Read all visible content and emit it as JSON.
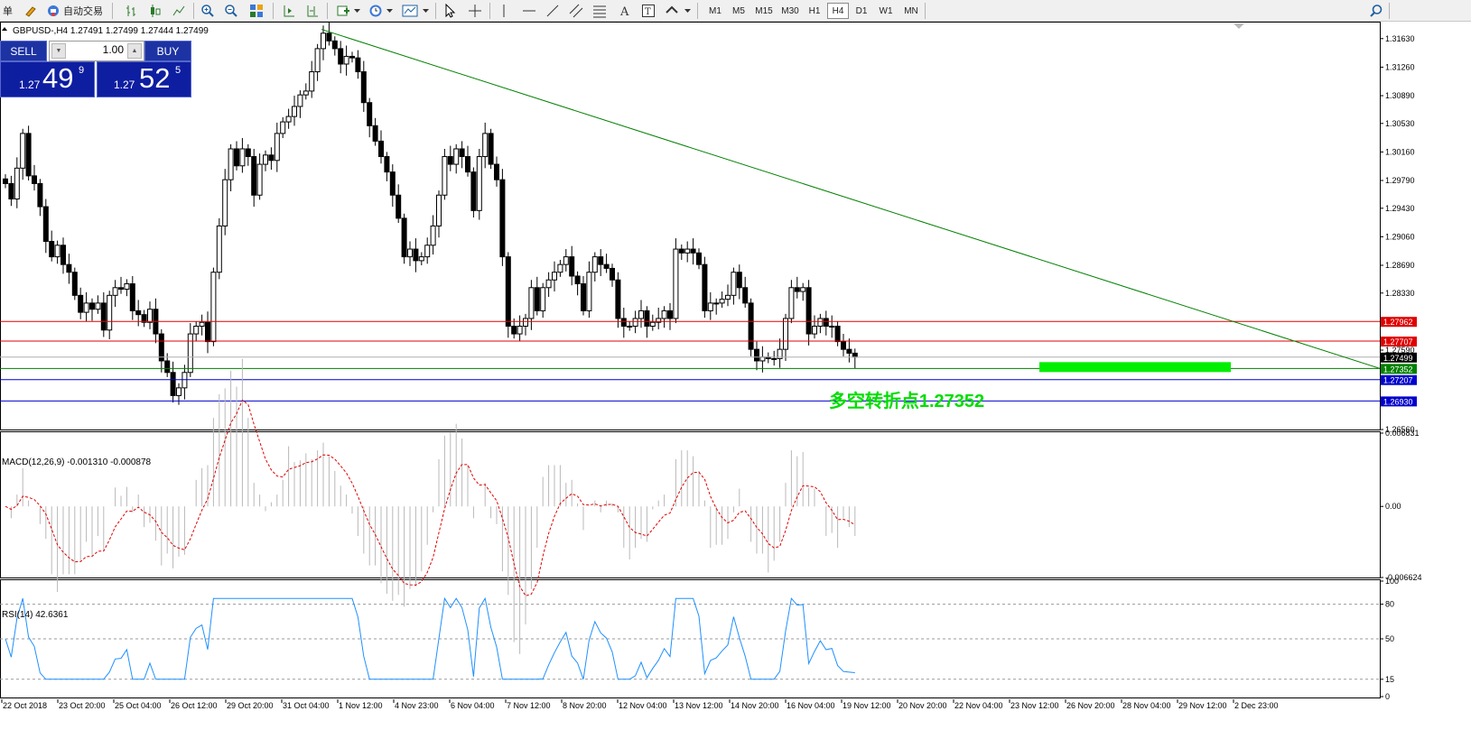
{
  "toolbar": {
    "menu_fragment": "单",
    "autotrade_label": "自动交易",
    "timeframes": [
      "M1",
      "M5",
      "M15",
      "M30",
      "H1",
      "H4",
      "D1",
      "W1",
      "MN"
    ],
    "active_timeframe": "H4"
  },
  "chart": {
    "symbol_info": "GBPUSD-,H4  1.27491 1.27499 1.27444 1.27499",
    "annotation": "多空转折点1.27352",
    "price_axis": [
      "1.31630",
      "1.31260",
      "1.30890",
      "1.30530",
      "1.30160",
      "1.29790",
      "1.29430",
      "1.29060",
      "1.28690",
      "1.28330",
      "1.27590",
      "1.26560"
    ],
    "price_tags": [
      {
        "label": "1.27962",
        "color": "#e00000"
      },
      {
        "label": "1.27707",
        "color": "#e00000"
      },
      {
        "label": "1.27499",
        "color": "#000000"
      },
      {
        "label": "1.27352",
        "color": "#008000"
      },
      {
        "label": "1.27207",
        "color": "#0000cc"
      },
      {
        "label": "1.26930",
        "color": "#0000cc"
      }
    ],
    "time_labels": [
      "22 Oct 2018",
      "23 Oct 20:00",
      "25 Oct 04:00",
      "26 Oct 12:00",
      "29 Oct 20:00",
      "31 Oct 04:00",
      "1 Nov 12:00",
      "4 Nov 23:00",
      "6 Nov 04:00",
      "7 Nov 12:00",
      "8 Nov 20:00",
      "12 Nov 04:00",
      "13 Nov 12:00",
      "14 Nov 20:00",
      "16 Nov 04:00",
      "19 Nov 12:00",
      "20 Nov 20:00",
      "22 Nov 04:00",
      "23 Nov 12:00",
      "26 Nov 20:00",
      "28 Nov 04:00",
      "29 Nov 12:00",
      "2 Dec 23:00"
    ]
  },
  "trade_panel": {
    "sell_label": "SELL",
    "buy_label": "BUY",
    "lot": "1.00",
    "sell_small": "1.27",
    "sell_big": "49",
    "sell_sup": "9",
    "buy_small": "1.27",
    "buy_big": "52",
    "buy_sup": "5"
  },
  "macd": {
    "label": "MACD(12,26,9) -0.001310 -0.000878",
    "axis": [
      "0.006831",
      "0.00",
      "-0.006624"
    ]
  },
  "rsi": {
    "label": "RSI(14) 42.6361",
    "axis": [
      "100",
      "80",
      "50",
      "15",
      "0"
    ]
  },
  "colors": {
    "bull": "#ffffff",
    "bear": "#000000",
    "trendline": "#008000",
    "resistance": "#e00000",
    "support": "#0000cc",
    "pivot": "#00ee00",
    "macd_signal": "#e00000",
    "rsi_line": "#1e90ff"
  },
  "chart_data": {
    "type": "candlestick",
    "price_series": [
      1.2975,
      1.2955,
      1.2995,
      1.304,
      1.2985,
      1.2975,
      1.2945,
      1.29,
      1.288,
      1.2895,
      1.287,
      1.286,
      1.283,
      1.2808,
      1.282,
      1.2812,
      1.282,
      1.2785,
      1.283,
      1.284,
      1.2838,
      1.2845,
      1.281,
      1.2805,
      1.2795,
      1.2812,
      1.278,
      1.2745,
      1.273,
      1.27,
      1.271,
      1.273,
      1.278,
      1.279,
      1.2795,
      1.277,
      1.286,
      1.292,
      1.298,
      1.302,
      1.2998,
      1.302,
      1.301,
      1.296,
      1.3,
      1.3012,
      1.3005,
      1.304,
      1.3055,
      1.3062,
      1.3075,
      1.309,
      1.3095,
      1.312,
      1.315,
      1.317,
      1.316,
      1.315,
      1.313,
      1.314,
      1.3138,
      1.312,
      1.308,
      1.305,
      1.303,
      1.301,
      1.299,
      1.296,
      1.293,
      1.288,
      1.289,
      1.2875,
      1.288,
      1.2895,
      1.292,
      1.296,
      1.301,
      1.3,
      1.302,
      1.301,
      1.299,
      1.294,
      1.301,
      1.304,
      1.3,
      1.298,
      1.288,
      1.279,
      1.278,
      1.279,
      1.28,
      1.284,
      1.281,
      1.284,
      1.285,
      1.286,
      1.287,
      1.288,
      1.2855,
      1.2845,
      1.281,
      1.286,
      1.288,
      1.287,
      1.2865,
      1.285,
      1.28,
      1.279,
      1.279,
      1.28,
      1.281,
      1.279,
      1.2795,
      1.28,
      1.281,
      1.28,
      1.289,
      1.2885,
      1.289,
      1.2885,
      1.287,
      1.281,
      1.282,
      1.282,
      1.2825,
      1.283,
      1.286,
      1.284,
      1.282,
      1.276,
      1.2745,
      1.275,
      1.2748,
      1.2748,
      1.276,
      1.28,
      1.284,
      1.2835,
      1.284,
      1.278,
      1.279,
      1.28,
      1.279,
      1.279,
      1.277,
      1.276,
      1.2755,
      1.275
    ],
    "price_range": [
      1.2656,
      1.3185
    ],
    "pivot_level": 1.27352,
    "resistance_levels": [
      1.27962,
      1.27707
    ],
    "support_levels": [
      1.27207,
      1.2693
    ],
    "current_price": 1.27499,
    "macd_range": [
      -0.006624,
      0.006831
    ],
    "rsi_range": [
      0,
      100
    ],
    "rsi_levels": [
      80,
      50,
      15
    ]
  }
}
